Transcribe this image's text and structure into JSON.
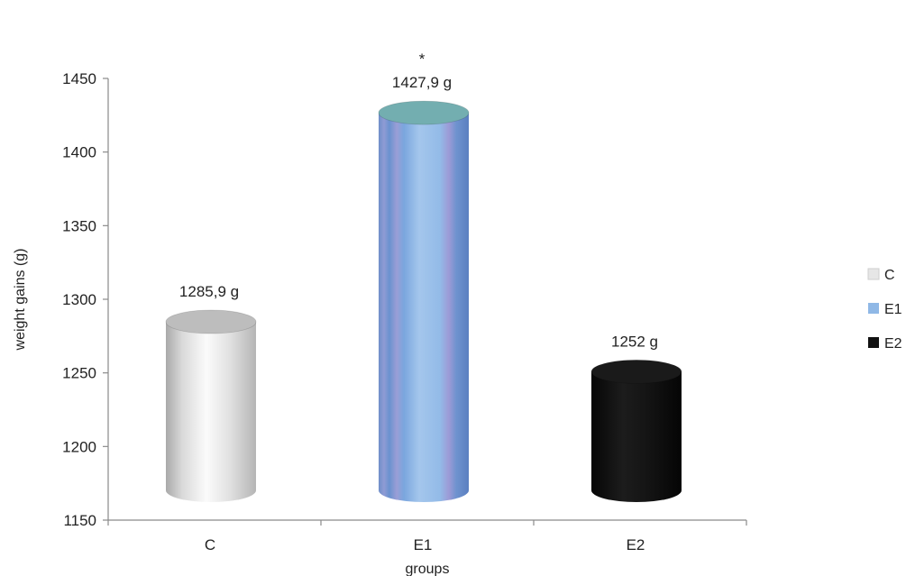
{
  "chart_data": {
    "type": "bar",
    "categories": [
      "C",
      "E1",
      "E2"
    ],
    "values": [
      1285.9,
      1427.9,
      1252
    ],
    "data_labels": [
      "1285,9  g",
      "1427,9 g",
      "1252 g"
    ],
    "annotations": [
      {
        "category": "E1",
        "text": "*"
      }
    ],
    "xlabel": "groups",
    "ylabel": "weight gains (g)",
    "ylim": [
      1150,
      1450
    ],
    "yticks": [
      1150,
      1200,
      1250,
      1300,
      1350,
      1400,
      1450
    ],
    "grid": false,
    "legend": {
      "position": "right",
      "entries": [
        "C",
        "E1",
        "E2"
      ]
    },
    "colors": {
      "C": "#e6e6e6",
      "E1": "#8fb8e6",
      "E2": "#111111"
    }
  }
}
